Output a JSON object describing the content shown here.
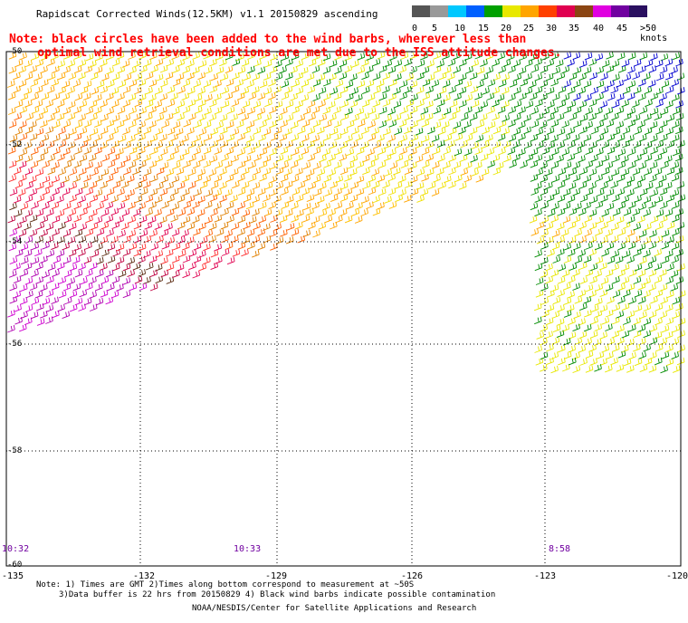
{
  "title": "Rapidscat Corrected Winds(12.5KM) v1.1 20150829 ascending",
  "note_lines": [
    "Note: black circles have been added to the wind barbs, wherever less than",
    "    optimal wind retrieval conditions are met due to the ISS attitude changes."
  ],
  "colorbar": {
    "labels": [
      "0",
      "5",
      "10",
      "15",
      "20",
      "25",
      "30",
      "35",
      "40",
      "45",
      ">50 knots"
    ],
    "colors": [
      "#555555",
      "#999999",
      "#00c8ff",
      "#0060ff",
      "#00a000",
      "#e8e800",
      "#ffa500",
      "#ff4000",
      "#e00050",
      "#8b4513",
      "#e000e0",
      "#7000a0",
      "#2a1060"
    ]
  },
  "map": {
    "lat_labels": [
      "-50",
      "-52",
      "-54",
      "-56",
      "-58",
      "-60"
    ],
    "lat_values": [
      -50,
      -52,
      -54,
      -56,
      -58,
      -60
    ],
    "lon_labels": [
      "-135",
      "-132",
      "-129",
      "-126",
      "-123",
      "-120"
    ],
    "lon_values": [
      -135,
      -132,
      -129,
      -126,
      -123,
      -120
    ],
    "lat_range": [
      -60,
      -50
    ],
    "lon_range": [
      -135,
      -120
    ]
  },
  "time_labels": [
    "10:32",
    "10:33",
    "8:58"
  ],
  "footer": {
    "line1": "Note: 1) Times are GMT 2)Times along bottom correspond to measurement at ~50S",
    "line2": "3)Data buffer is 22 hrs from 20150829 4) Black wind barbs indicate possible contamination",
    "credit": "NOAA/NESDIS/Center for Satellite Applications and Research"
  }
}
